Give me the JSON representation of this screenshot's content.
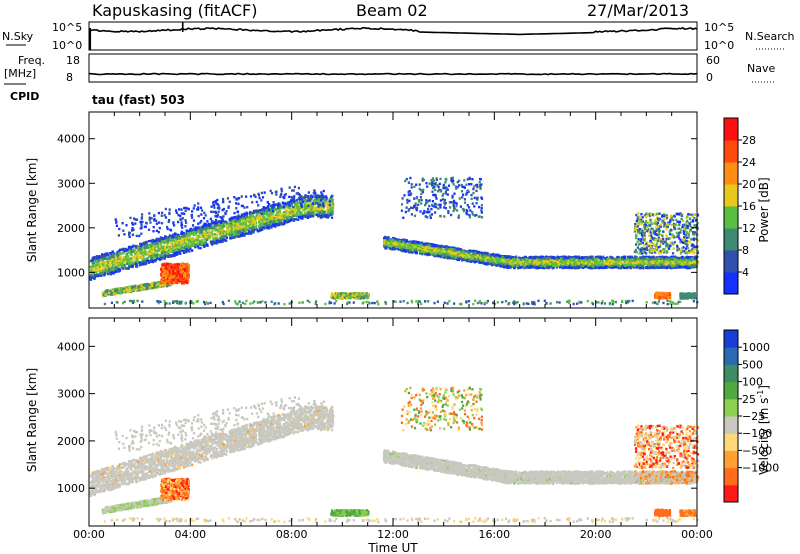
{
  "header": {
    "station": "Kapuskasing (fitACF)",
    "beam": "Beam 02",
    "date": "27/Mar/2013"
  },
  "noise_panel": {
    "left_label": "N.Sky",
    "left_ticks": [
      "10^5",
      "10^0"
    ],
    "right_label": "N.Search",
    "right_ticks": [
      "10^5",
      "10^0"
    ]
  },
  "freq_panel": {
    "left_label_top": "Freq.",
    "left_label_unit": "[MHz]",
    "left_ticks": [
      "18",
      "8"
    ],
    "right_label": "Nave",
    "right_ticks": [
      "60",
      "0"
    ],
    "cpid_label": "CPID",
    "cpid_value": "tau (fast) 503"
  },
  "chart_data": [
    {
      "type": "heatmap",
      "quantity": "Power",
      "ylabel": "Slant Range [km]",
      "y_ticks": [
        "1000",
        "2000",
        "3000",
        "4000"
      ],
      "ylim": [
        200,
        4600
      ],
      "colorbar_label": "Power [dB]",
      "colorbar_ticks": [
        "4",
        "8",
        "12",
        "16",
        "20",
        "24",
        "28"
      ],
      "colorbar_colors": [
        "#1432ff",
        "#3050b0",
        "#3e8a72",
        "#5abe42",
        "#e8c81c",
        "#ff8c14",
        "#ff4a10",
        "#ff1010"
      ],
      "features": [
        {
          "hours": [
            0.0,
            9.6
          ],
          "range_km": [
            1000,
            2500
          ],
          "power_db": 16
        },
        {
          "hours": [
            0.5,
            3.8
          ],
          "range_km": [
            500,
            1000
          ],
          "power_db": 24
        },
        {
          "hours": [
            11.6,
            22.0
          ],
          "range_km": [
            1200,
            1750
          ],
          "power_db": 12
        },
        {
          "hours": [
            22.0,
            24.0
          ],
          "range_km": [
            1200,
            1300
          ],
          "power_db": 20
        }
      ]
    },
    {
      "type": "heatmap",
      "quantity": "Velocity",
      "ylabel": "Slant Range [km]",
      "y_ticks": [
        "1000",
        "2000",
        "3000",
        "4000"
      ],
      "ylim": [
        200,
        4600
      ],
      "xlabel": "Time UT",
      "x_ticks": [
        "00:00",
        "04:00",
        "08:00",
        "12:00",
        "16:00",
        "20:00",
        "00:00"
      ],
      "xlim_hours": [
        0,
        24
      ],
      "colorbar_label": "Velocity [m s",
      "colorbar_label_sup": "-1",
      "colorbar_label_end": "]",
      "colorbar_ticks": [
        "1000",
        "500",
        "100",
        "25",
        "−25",
        "−100",
        "−500",
        "−1000"
      ],
      "colorbar_colors": [
        "#1a3cd8",
        "#2a6ab0",
        "#3c8c64",
        "#50a840",
        "#8cd050",
        "#c8c8c0",
        "#ffd878",
        "#ffa030",
        "#ff6c1c",
        "#ff1a1a"
      ]
    }
  ]
}
